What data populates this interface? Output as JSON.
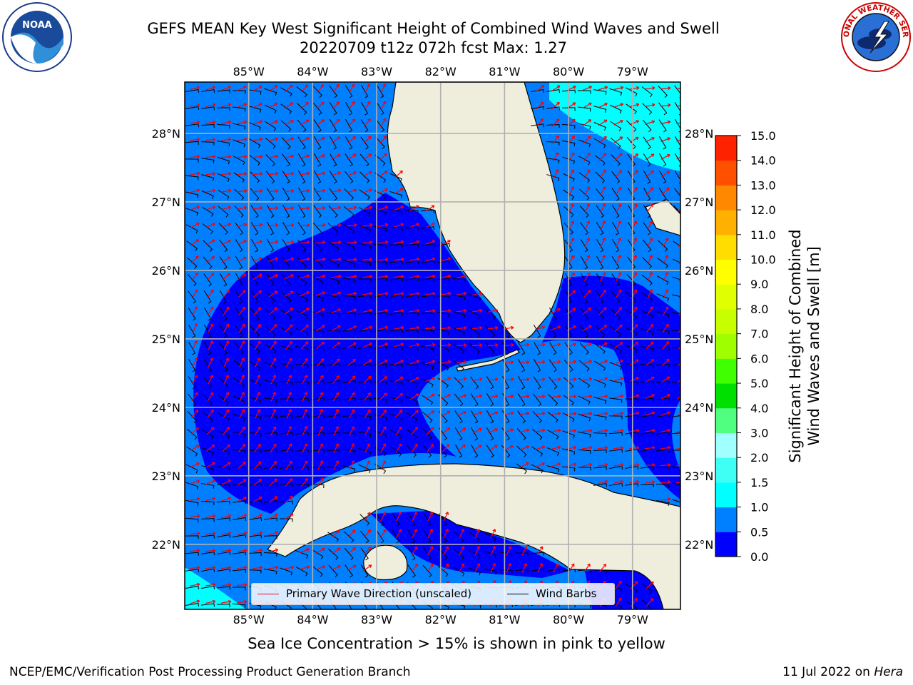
{
  "title": {
    "line1": "GEFS MEAN Key West Significant Height of Combined Wind Waves and Swell",
    "line2": "20220709 t12z 072h fcst    Max: 1.27"
  },
  "logos": {
    "left": {
      "name": "noaa-logo",
      "text": "NOAA"
    },
    "right": {
      "name": "nws-logo",
      "text": "NATIONAL WEATHER SERVICE"
    }
  },
  "map": {
    "extent": {
      "lon": [
        -86.0,
        -78.25
      ],
      "lat": [
        21.05,
        28.75
      ]
    },
    "lon_ticks": [
      {
        "value": -85,
        "label": "85°W"
      },
      {
        "value": -84,
        "label": "84°W"
      },
      {
        "value": -83,
        "label": "83°W"
      },
      {
        "value": -82,
        "label": "82°W"
      },
      {
        "value": -81,
        "label": "81°W"
      },
      {
        "value": -80,
        "label": "80°W"
      },
      {
        "value": -79,
        "label": "79°W"
      }
    ],
    "lat_ticks": [
      {
        "value": 28,
        "label": "28°N"
      },
      {
        "value": 27,
        "label": "27°N"
      },
      {
        "value": 26,
        "label": "26°N"
      },
      {
        "value": 25,
        "label": "25°N"
      },
      {
        "value": 24,
        "label": "24°N"
      },
      {
        "value": 23,
        "label": "23°N"
      },
      {
        "value": 22,
        "label": "22°N"
      }
    ],
    "colors": {
      "land": "#efeedd",
      "lt_0_5": "#0000ff",
      "lt_1_0": "#0080ff",
      "lt_1_5": "#00ffff",
      "grid": "#b0b0b0",
      "wave_arrow": "#ff0000",
      "wind_barb": "#000000"
    }
  },
  "legend": {
    "wave": "Primary Wave Direction (unscaled)",
    "wind": "Wind Barbs"
  },
  "colorbar": {
    "label_line1": "Significant Height of Combined",
    "label_line2": "Wind Waves and Swell [m]",
    "range": [
      0,
      15
    ],
    "levels": [
      {
        "value": 0.0,
        "label": "0.0",
        "color": "#0000ff"
      },
      {
        "value": 0.5,
        "label": "0.5",
        "color": "#0080ff"
      },
      {
        "value": 1.0,
        "label": "1.0",
        "color": "#00ffff"
      },
      {
        "value": 1.5,
        "label": "1.5",
        "color": "#3ffff5"
      },
      {
        "value": 2.0,
        "label": "2.0",
        "color": "#a0ffff"
      },
      {
        "value": 3.0,
        "label": "3.0",
        "color": "#50ff80"
      },
      {
        "value": 4.0,
        "label": "4.0",
        "color": "#00e000"
      },
      {
        "value": 5.0,
        "label": "5.0",
        "color": "#40ff00"
      },
      {
        "value": 6.0,
        "label": "6.0",
        "color": "#9fff00"
      },
      {
        "value": 7.0,
        "label": "7.0",
        "color": "#c8ff00"
      },
      {
        "value": 8.0,
        "label": "8.0",
        "color": "#e0ff00"
      },
      {
        "value": 9.0,
        "label": "9.0",
        "color": "#ffff00"
      },
      {
        "value": 10.0,
        "label": "10.0",
        "color": "#ffdd00"
      },
      {
        "value": 11.0,
        "label": "11.0",
        "color": "#ffb000"
      },
      {
        "value": 12.0,
        "label": "12.0",
        "color": "#ff8800"
      },
      {
        "value": 13.0,
        "label": "13.0",
        "color": "#ff5000"
      },
      {
        "value": 14.0,
        "label": "14.0",
        "color": "#ff2200"
      },
      {
        "value": 15.0,
        "label": "15.0",
        "color": "#ff0000"
      }
    ]
  },
  "footer": {
    "note": "Sea Ice Concentration > 15% is shown in pink to yellow",
    "left": "NCEP/EMC/Verification Post Processing Product Generation Branch",
    "date": "11 Jul 2022 on ",
    "host": "Hera"
  }
}
